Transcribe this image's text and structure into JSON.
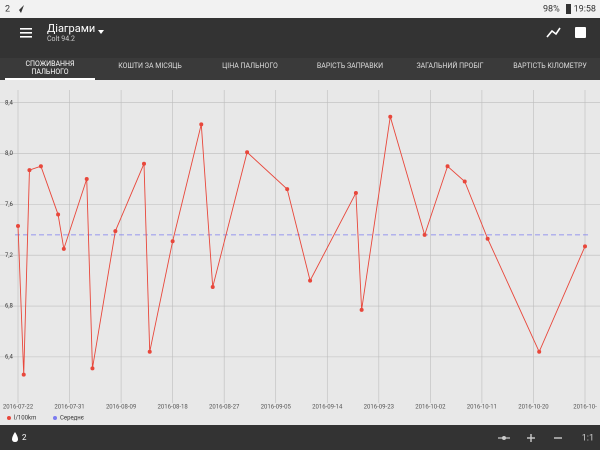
{
  "status_bar": {
    "notifications": "2",
    "battery": "98%",
    "time": "19:58"
  },
  "app_bar": {
    "title": "Діаграми",
    "subtitle": "Colt 94.2"
  },
  "tabs": [
    "СПОЖИВАННЯ ПАЛЬНОГО",
    "КОШТИ ЗА МІСЯЦЬ",
    "ЦІНА ПАЛЬНОГО",
    "ВАРІСТЬ ЗАПРАВКИ",
    "ЗАГАЛЬНИЙ ПРОБІГ",
    "ВАРТІСТЬ КІЛОМЕТРУ"
  ],
  "chart_data": {
    "type": "line",
    "x": [
      "2016-07-22",
      "2016-07-23",
      "2016-07-24",
      "2016-07-26",
      "2016-07-29",
      "2016-07-30",
      "2016-08-03",
      "2016-08-04",
      "2016-08-08",
      "2016-08-13",
      "2016-08-14",
      "2016-08-18",
      "2016-08-23",
      "2016-08-25",
      "2016-08-31",
      "2016-09-07",
      "2016-09-11",
      "2016-09-19",
      "2016-09-20",
      "2016-09-25",
      "2016-10-01",
      "2016-10-05",
      "2016-10-08",
      "2016-10-12",
      "2016-10-21",
      "2016-10-29"
    ],
    "series": [
      {
        "name": "l/100km",
        "color": "#e8473b",
        "values": [
          7.43,
          6.26,
          7.87,
          7.9,
          7.52,
          7.25,
          7.8,
          6.31,
          7.39,
          7.92,
          6.44,
          7.31,
          8.23,
          6.95,
          8.01,
          7.72,
          7.0,
          7.69,
          6.77,
          8.29,
          7.36,
          7.9,
          7.78,
          7.33,
          6.44,
          7.27
        ]
      }
    ],
    "reference_line": {
      "name": "Середнє",
      "color": "#7b7bf0",
      "value": 7.36
    },
    "xlim": [
      "2016-07-22",
      "2016-10-29"
    ],
    "xticks": [
      "2016-07-22",
      "2016-07-31",
      "2016-08-09",
      "2016-08-18",
      "2016-08-27",
      "2016-09-05",
      "2016-09-14",
      "2016-09-23",
      "2016-10-02",
      "2016-10-11",
      "2016-10-20",
      {
        "value": "2016-10-29",
        "label": "2016-10-"
      }
    ],
    "ylim": [
      6.1,
      8.5
    ],
    "yticks": [
      {
        "value": 6.4,
        "label": "6,4"
      },
      {
        "value": 6.8,
        "label": "6,8"
      },
      {
        "value": 7.2,
        "label": "7,2"
      },
      {
        "value": 7.6,
        "label": "7,6"
      },
      {
        "value": 8.0,
        "label": "8,0"
      },
      {
        "value": 8.4,
        "label": "8,4"
      }
    ],
    "grid": true
  },
  "bottom_bar": {
    "count": "2",
    "zoom": "1:1"
  }
}
